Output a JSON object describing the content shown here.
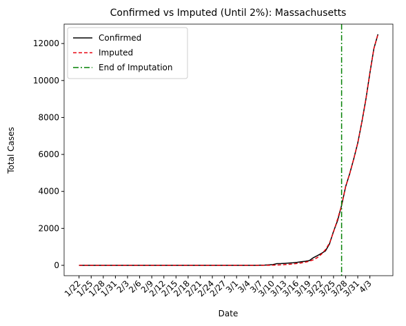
{
  "chart_data": {
    "type": "line",
    "title": "Confirmed vs Imputed (Until 2%): Massachusetts",
    "xlabel": "Date",
    "ylabel": "Total Cases",
    "categories": [
      "1/22",
      null,
      null,
      "1/25",
      null,
      null,
      "1/28",
      null,
      null,
      "1/31",
      null,
      null,
      "2/3",
      null,
      null,
      "2/6",
      null,
      null,
      "2/9",
      null,
      null,
      "2/12",
      null,
      null,
      "2/15",
      null,
      null,
      "2/18",
      null,
      null,
      "2/21",
      null,
      null,
      "2/24",
      null,
      null,
      "2/27",
      null,
      null,
      "3/1",
      null,
      null,
      "3/4",
      null,
      null,
      "3/7",
      null,
      null,
      "3/10",
      null,
      null,
      "3/13",
      null,
      null,
      "3/16",
      null,
      null,
      "3/19",
      null,
      null,
      "3/22",
      null,
      null,
      "3/25",
      null,
      null,
      "3/28",
      null,
      null,
      "3/31",
      null,
      null,
      "4/3",
      null,
      null
    ],
    "series": [
      {
        "name": "Confirmed",
        "color": "#000000",
        "linestyle": "solid",
        "values": [
          0,
          0,
          0,
          0,
          0,
          0,
          0,
          0,
          0,
          0,
          0,
          1,
          1,
          1,
          1,
          1,
          1,
          1,
          1,
          1,
          1,
          1,
          1,
          1,
          1,
          1,
          1,
          1,
          1,
          1,
          1,
          1,
          1,
          1,
          1,
          1,
          1,
          1,
          1,
          1,
          1,
          1,
          1,
          1,
          1,
          7,
          13,
          28,
          41,
          92,
          95,
          108,
          123,
          138,
          164,
          197,
          218,
          256,
          413,
          525,
          646,
          777,
          1159,
          1838,
          2417,
          3240,
          4257,
          4955,
          5752,
          6620,
          7738,
          8966,
          10402,
          11736,
          12500
        ]
      },
      {
        "name": "Imputed",
        "color": "#e8000b",
        "linestyle": "dashed",
        "values": [
          0,
          0,
          0,
          0,
          0,
          0,
          0,
          0,
          0,
          0,
          0,
          0,
          0,
          0,
          0,
          0,
          0,
          0,
          0,
          0,
          0,
          0,
          0,
          0,
          0,
          0,
          0,
          0,
          0,
          0,
          0,
          0,
          0,
          0,
          0,
          0,
          0,
          0,
          0,
          0,
          0,
          0,
          0,
          0,
          0,
          1,
          2,
          4,
          8,
          15,
          25,
          40,
          55,
          75,
          100,
          130,
          170,
          220,
          300,
          420,
          600,
          850,
          1200,
          1800,
          2500,
          3240,
          4257,
          4955,
          5752,
          6620,
          7738,
          8966,
          10402,
          11736,
          12500
        ]
      }
    ],
    "vline": {
      "name": "End of Imputation",
      "color": "#008000",
      "x": 65
    },
    "xlim": [
      -3.7,
      77.7
    ],
    "ylim": [
      -560,
      13050
    ],
    "yticks": [
      0,
      2000,
      4000,
      6000,
      8000,
      10000,
      12000
    ],
    "legend": "upper left",
    "grid": false
  }
}
